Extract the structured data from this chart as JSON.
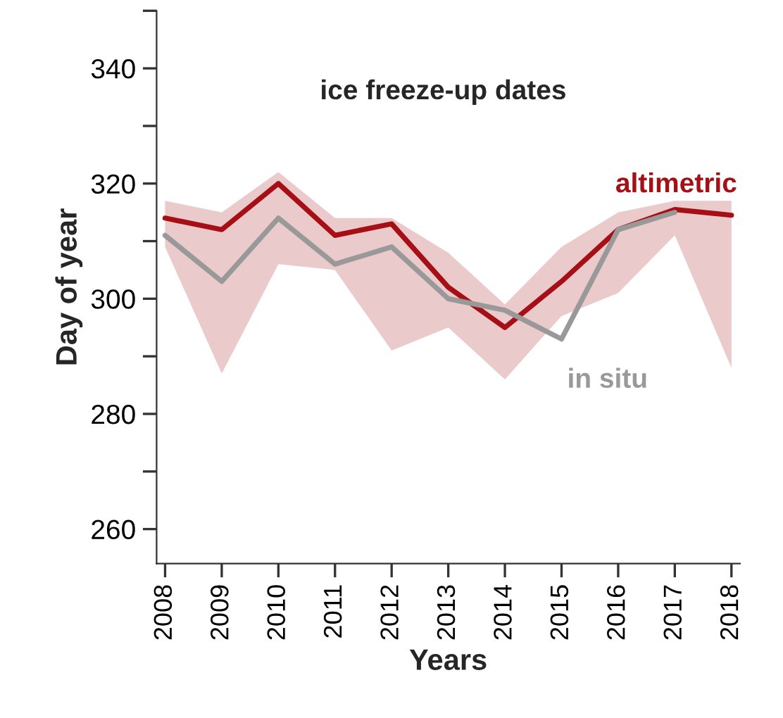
{
  "chart_data": {
    "type": "line",
    "title": "ice freeze-up dates",
    "xlabel": "Years",
    "ylabel": "Day of year",
    "categories": [
      "2008",
      "2009",
      "2010",
      "2011",
      "2012",
      "2013",
      "2014",
      "2015",
      "2016",
      "2017",
      "2018"
    ],
    "series": [
      {
        "name": "altimetric",
        "color": "#a50f15",
        "values": [
          314,
          312,
          320,
          311,
          313,
          302,
          295,
          303,
          312,
          315.5,
          314.5
        ],
        "lower": [
          309,
          287,
          306,
          305,
          291,
          295,
          286,
          297,
          301,
          311,
          288
        ],
        "upper": [
          317,
          315,
          322,
          314,
          314,
          308,
          299,
          309,
          315,
          317,
          317
        ]
      },
      {
        "name": "in situ",
        "color": "#999999",
        "values": [
          311,
          303,
          314,
          306,
          309,
          300,
          298,
          293,
          312,
          315,
          null
        ]
      }
    ],
    "ylim": [
      254,
      350
    ],
    "yticks": [
      {
        "value": 350,
        "label": null
      },
      340,
      {
        "value": 330,
        "label": null
      },
      320,
      {
        "value": 310,
        "label": null
      },
      300,
      {
        "value": 290,
        "label": null
      },
      280,
      {
        "value": 270,
        "label": null
      },
      260
    ],
    "grid": false,
    "legend": false,
    "line_style": "solid",
    "marker": "none"
  }
}
